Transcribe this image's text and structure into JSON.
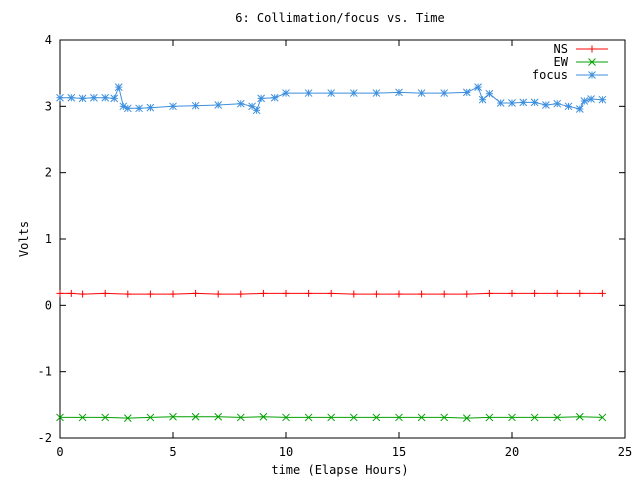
{
  "chart_data": {
    "type": "line",
    "title": "6: Collimation/focus vs. Time",
    "xlabel": "time (Elapse Hours)",
    "ylabel": "Volts",
    "xlim": [
      0,
      25
    ],
    "ylim": [
      -2,
      4
    ],
    "xticks": [
      0,
      5,
      10,
      15,
      20,
      25
    ],
    "yticks": [
      -2,
      -1,
      0,
      1,
      2,
      3,
      4
    ],
    "xtick_labels": [
      "0",
      "5",
      "10",
      "15",
      "20",
      "25"
    ],
    "ytick_labels": [
      "-2",
      "-1",
      "0",
      "1",
      "2",
      "3",
      "4"
    ],
    "grid": false,
    "legend_position": "top-right",
    "series": [
      {
        "name": "NS",
        "color": "#ff0000",
        "marker": "plus",
        "x": [
          0,
          0.5,
          1,
          2,
          3,
          4,
          5,
          6,
          7,
          8,
          9,
          10,
          11,
          12,
          13,
          14,
          15,
          16,
          17,
          18,
          19,
          20,
          21,
          22,
          23,
          24
        ],
        "y": [
          0.18,
          0.18,
          0.17,
          0.18,
          0.17,
          0.17,
          0.17,
          0.18,
          0.17,
          0.17,
          0.18,
          0.18,
          0.18,
          0.18,
          0.17,
          0.17,
          0.17,
          0.17,
          0.17,
          0.17,
          0.18,
          0.18,
          0.18,
          0.18,
          0.18,
          0.18
        ]
      },
      {
        "name": "EW",
        "color": "#00a000",
        "marker": "cross",
        "x": [
          0,
          1,
          2,
          3,
          4,
          5,
          6,
          7,
          8,
          9,
          10,
          11,
          12,
          13,
          14,
          15,
          16,
          17,
          18,
          19,
          20,
          21,
          22,
          23,
          24
        ],
        "y": [
          -1.69,
          -1.69,
          -1.69,
          -1.7,
          -1.69,
          -1.68,
          -1.68,
          -1.68,
          -1.69,
          -1.68,
          -1.69,
          -1.69,
          -1.69,
          -1.69,
          -1.69,
          -1.69,
          -1.69,
          -1.69,
          -1.7,
          -1.69,
          -1.69,
          -1.69,
          -1.69,
          -1.68,
          -1.69
        ]
      },
      {
        "name": "focus",
        "color": "#3d8fdd",
        "marker": "star",
        "x": [
          0,
          0.5,
          1,
          1.5,
          2,
          2.4,
          2.6,
          2.8,
          3,
          3.5,
          4,
          5,
          6,
          7,
          8,
          8.5,
          8.7,
          8.9,
          9.5,
          10,
          11,
          12,
          13,
          14,
          15,
          16,
          17,
          18,
          18.5,
          18.7,
          19,
          19.5,
          20,
          20.5,
          21,
          21.5,
          22,
          22.5,
          23,
          23.2,
          23.5,
          24
        ],
        "y": [
          3.13,
          3.13,
          3.12,
          3.13,
          3.13,
          3.12,
          3.29,
          3.0,
          2.97,
          2.97,
          2.98,
          3.0,
          3.01,
          3.02,
          3.04,
          3.0,
          2.94,
          3.12,
          3.13,
          3.2,
          3.2,
          3.2,
          3.2,
          3.2,
          3.21,
          3.2,
          3.2,
          3.21,
          3.29,
          3.1,
          3.19,
          3.05,
          3.05,
          3.06,
          3.06,
          3.02,
          3.04,
          3.0,
          2.96,
          3.08,
          3.11,
          3.1
        ]
      }
    ]
  }
}
